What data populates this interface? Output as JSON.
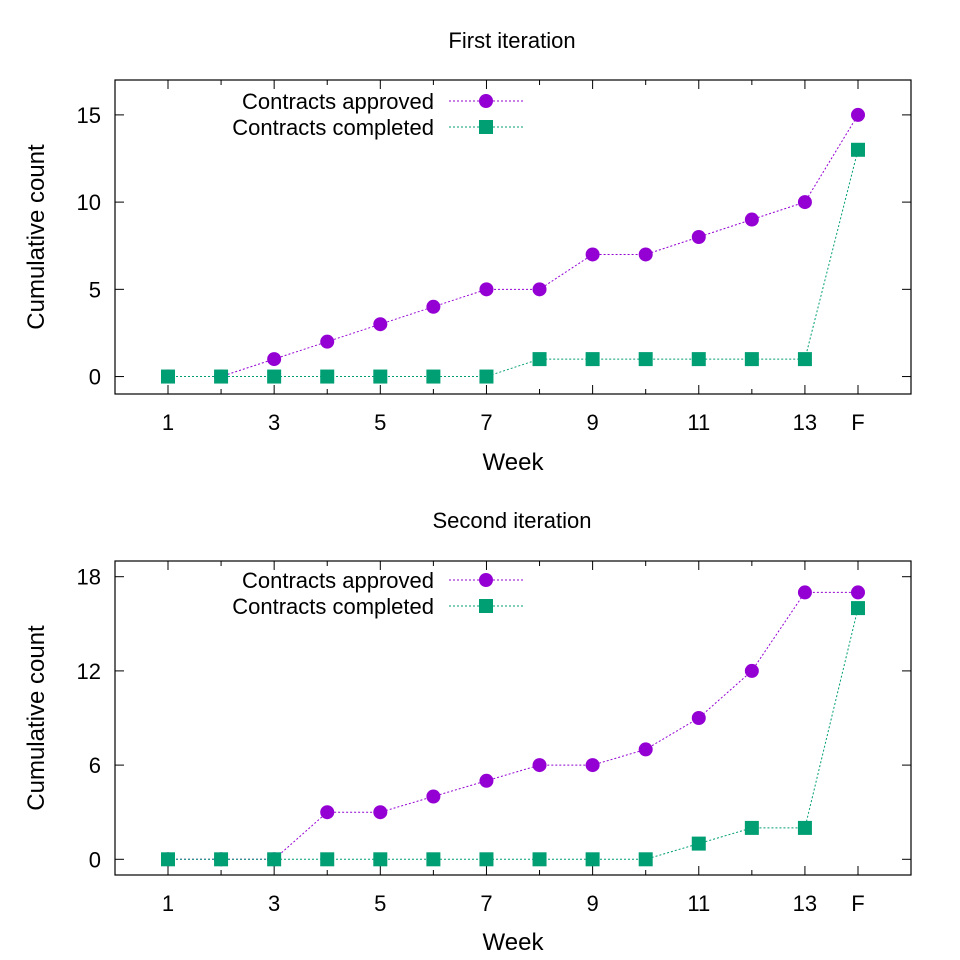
{
  "chart_data": [
    {
      "type": "line",
      "title": "First iteration",
      "xlabel": "Week",
      "ylabel": "Cumulative count",
      "categories": [
        "1",
        "2",
        "3",
        "4",
        "5",
        "6",
        "7",
        "8",
        "9",
        "10",
        "11",
        "12",
        "13",
        "F"
      ],
      "tick_labels_x": [
        "1",
        "3",
        "5",
        "7",
        "9",
        "11",
        "13",
        "F"
      ],
      "ylim": [
        -1,
        17
      ],
      "yticks": [
        0,
        5,
        10,
        15
      ],
      "legend_position": "top-left",
      "series": [
        {
          "name": "Contracts approved",
          "marker": "circle",
          "color": "#9400d3",
          "values": [
            0,
            0,
            1,
            2,
            3,
            4,
            5,
            5,
            7,
            7,
            8,
            9,
            10,
            15
          ]
        },
        {
          "name": "Contracts completed",
          "marker": "square",
          "color": "#009e73",
          "values": [
            0,
            0,
            0,
            0,
            0,
            0,
            0,
            1,
            1,
            1,
            1,
            1,
            1,
            13
          ]
        }
      ]
    },
    {
      "type": "line",
      "title": "Second iteration",
      "xlabel": "Week",
      "ylabel": "Cumulative count",
      "categories": [
        "1",
        "2",
        "3",
        "4",
        "5",
        "6",
        "7",
        "8",
        "9",
        "10",
        "11",
        "12",
        "13",
        "F"
      ],
      "tick_labels_x": [
        "1",
        "3",
        "5",
        "7",
        "9",
        "11",
        "13",
        "F"
      ],
      "ylim": [
        -1,
        19
      ],
      "yticks": [
        0,
        6,
        12,
        18
      ],
      "legend_position": "top-left",
      "series": [
        {
          "name": "Contracts approved",
          "marker": "circle",
          "color": "#9400d3",
          "values": [
            0,
            0,
            0,
            3,
            3,
            4,
            5,
            6,
            6,
            7,
            9,
            12,
            17,
            17
          ]
        },
        {
          "name": "Contracts completed",
          "marker": "square",
          "color": "#009e73",
          "values": [
            0,
            0,
            0,
            0,
            0,
            0,
            0,
            0,
            0,
            0,
            1,
            2,
            2,
            16
          ]
        }
      ]
    }
  ]
}
